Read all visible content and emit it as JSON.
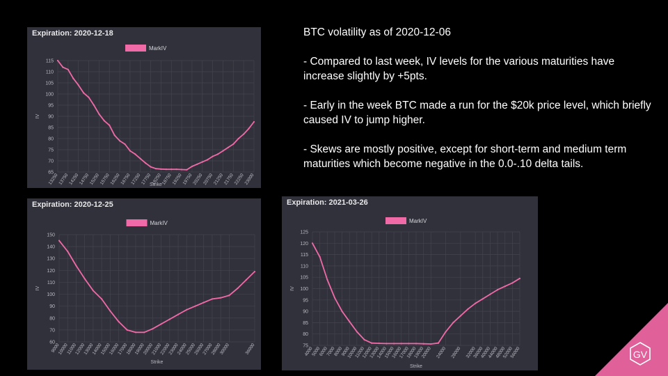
{
  "slide": {
    "heading": "BTC volatility as of 2020-12-06",
    "bullets": [
      "- Compared to last week, IV levels for the various maturities have increase slightly by +5pts.",
      "- Early in the week BTC made a run for the $20k price level, which briefly caused IV to jump higher.",
      "- Skews are mostly positive, except for short-term and medium term maturities which become negative in the 0.0-.10 delta tails."
    ],
    "logo_text": "GV",
    "logo_color": "#e0609a"
  },
  "chart_data": [
    {
      "type": "line",
      "title": "Expiration: 2020-12-18",
      "xlabel": "Strike",
      "ylabel": "IV",
      "legend": "MarkIV",
      "legend_position": "top",
      "grid": true,
      "line_color": "#f06aa8",
      "ylim": [
        65,
        115
      ],
      "yticks": [
        65,
        70,
        75,
        80,
        85,
        90,
        95,
        100,
        105,
        110,
        115
      ],
      "x_tick_labels": [
        "13250",
        "13750",
        "14250",
        "14750",
        "15250",
        "15750",
        "16250",
        "16750",
        "17250",
        "17750",
        "18250",
        "18750",
        "19250",
        "19750",
        "20250",
        "20750",
        "21250",
        "21750",
        "22250",
        "23000"
      ],
      "x": [
        "13250",
        "13500",
        "13750",
        "14000",
        "14250",
        "14500",
        "14750",
        "15000",
        "15250",
        "15500",
        "15750",
        "16000",
        "16250",
        "16500",
        "16750",
        "17000",
        "17250",
        "17500",
        "17750",
        "18000",
        "18250",
        "18500",
        "18750",
        "19000",
        "19250",
        "19500",
        "19750",
        "20000",
        "20250",
        "20500",
        "20750",
        "21000",
        "21250",
        "21500",
        "21750",
        "22000",
        "22250",
        "22500",
        "23000"
      ],
      "values": [
        115,
        112,
        111,
        107,
        104,
        100.5,
        98.5,
        95,
        91,
        88,
        86,
        81.5,
        79,
        77.5,
        74.5,
        73,
        71,
        69,
        67.3,
        66.5,
        66.3,
        66.2,
        66.2,
        66.2,
        66.1,
        66,
        67.5,
        68.5,
        69.5,
        70.5,
        72,
        73,
        74.5,
        76,
        77.5,
        80,
        82,
        84.5,
        87.5
      ]
    },
    {
      "type": "line",
      "title": "Expiration: 2020-12-25",
      "xlabel": "Strike",
      "ylabel": "IV",
      "legend": "MarkIV",
      "legend_position": "top",
      "grid": true,
      "line_color": "#f06aa8",
      "ylim": [
        60,
        150
      ],
      "yticks": [
        60,
        70,
        80,
        90,
        100,
        110,
        120,
        130,
        140,
        150
      ],
      "x_tick_labels": [
        "9000",
        "10000",
        "11000",
        "12000",
        "13000",
        "14000",
        "15000",
        "16000",
        "17000",
        "18000",
        "19000",
        "20000",
        "21000",
        "22000",
        "23000",
        "24000",
        "25000",
        "26000",
        "27000",
        "28000",
        "30000",
        "36000"
      ],
      "x": [
        "9000",
        "10000",
        "11000",
        "12000",
        "13000",
        "14000",
        "15000",
        "16000",
        "17000",
        "18000",
        "19000",
        "20000",
        "21000",
        "22000",
        "23000",
        "24000",
        "25000",
        "26000",
        "27000",
        "28000",
        "30000",
        "32000",
        "34000",
        "36000"
      ],
      "values": [
        145,
        136,
        124,
        113,
        103,
        96,
        86,
        77,
        70,
        68,
        68,
        71,
        75,
        79,
        83,
        87,
        90,
        93,
        96,
        97,
        99,
        105,
        112,
        119
      ]
    },
    {
      "type": "line",
      "title": "Expiration: 2021-03-26",
      "xlabel": "Strike",
      "ylabel": "IV",
      "legend": "MarkIV",
      "legend_position": "top",
      "grid": true,
      "line_color": "#f06aa8",
      "ylim": [
        75,
        125
      ],
      "yticks": [
        75,
        80,
        85,
        90,
        95,
        100,
        105,
        110,
        115,
        120,
        125
      ],
      "x_tick_labels": [
        "4000",
        "5000",
        "6000",
        "7000",
        "8000",
        "9000",
        "10000",
        "11000",
        "12000",
        "13000",
        "14000",
        "15000",
        "16000",
        "17000",
        "18000",
        "19000",
        "20000",
        "24000",
        "28000",
        "32000",
        "36000",
        "40000",
        "44000",
        "48000",
        "52000",
        "56000"
      ],
      "x": [
        "4000",
        "5000",
        "6000",
        "7000",
        "8000",
        "9000",
        "10000",
        "11000",
        "12000",
        "13000",
        "14000",
        "15000",
        "16000",
        "17000",
        "18000",
        "19000",
        "20000",
        "22000",
        "24000",
        "26000",
        "28000",
        "30000",
        "32000",
        "36000",
        "40000",
        "44000",
        "48000",
        "52000",
        "56000"
      ],
      "values": [
        120,
        114,
        104,
        96,
        90,
        85.5,
        81,
        77.5,
        76,
        75.9,
        75.8,
        75.8,
        75.8,
        75.8,
        75.8,
        75.7,
        75.6,
        76,
        81,
        85,
        88,
        91,
        93.5,
        95.5,
        97.5,
        99.5,
        101,
        102.5,
        104.5
      ]
    }
  ]
}
